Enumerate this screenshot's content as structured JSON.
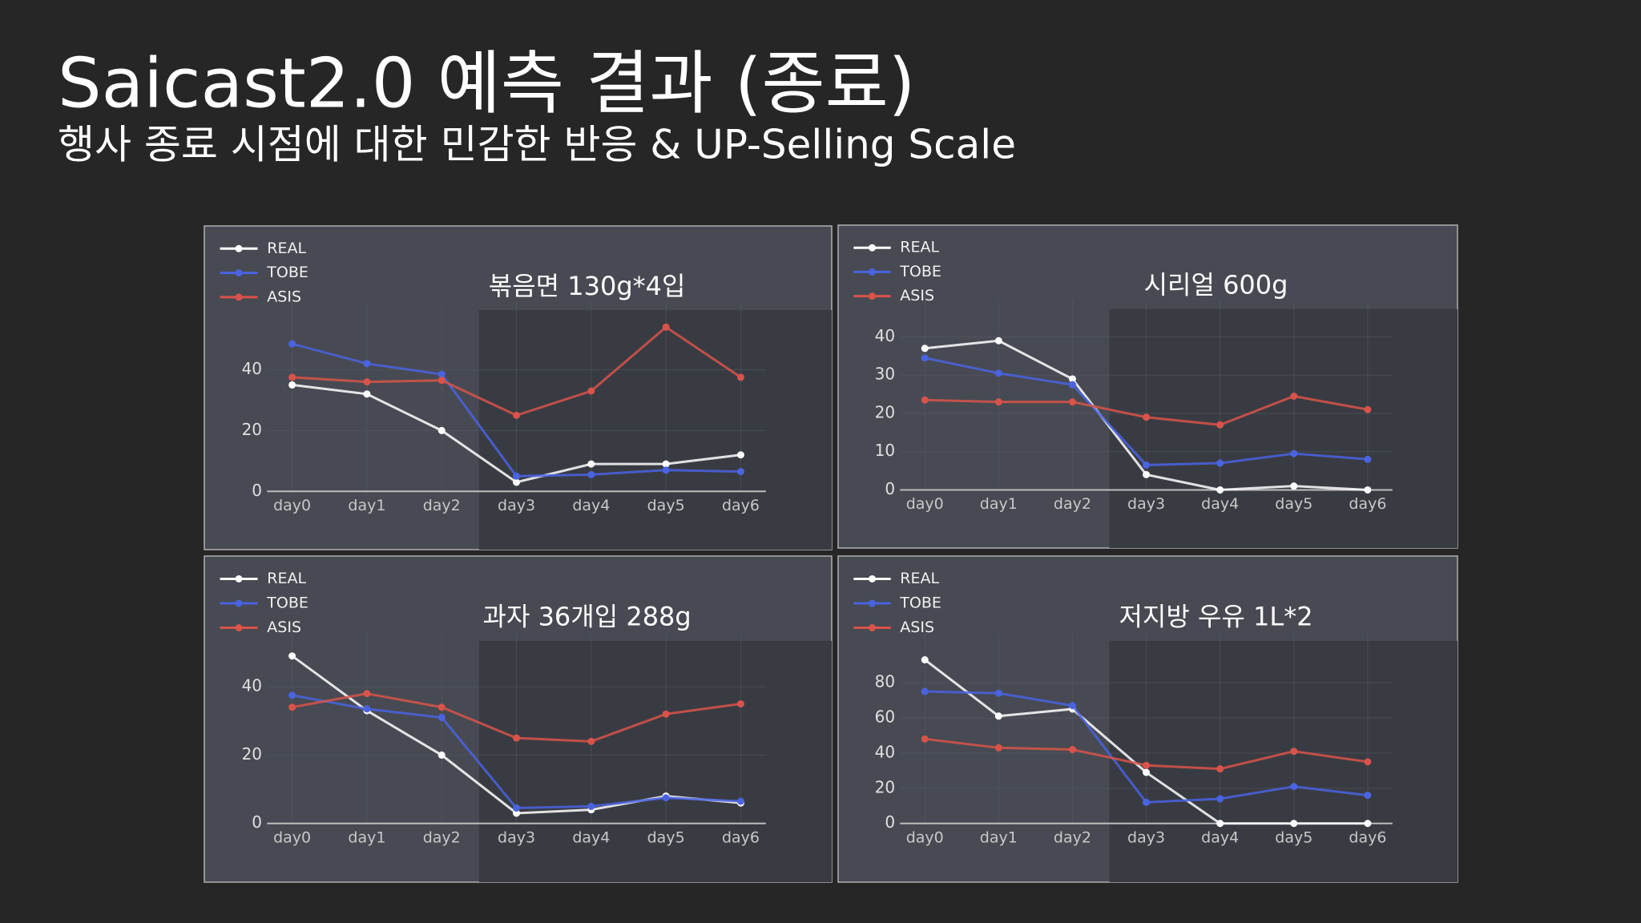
{
  "header": {
    "title": "Saicast2.0 예측 결과 (종료)",
    "subtitle": "행사 종료 시점에 대한 민감한 반응 & UP-Selling Scale"
  },
  "chart_data": [
    {
      "type": "line",
      "title": "볶음면 130g*4입",
      "categories": [
        "day0",
        "day1",
        "day2",
        "day3",
        "day4",
        "day5",
        "day6"
      ],
      "series": [
        {
          "name": "REAL",
          "color": "#ffffff",
          "values": [
            35,
            32,
            20,
            3,
            9,
            9,
            12
          ]
        },
        {
          "name": "TOBE",
          "color": "#4a63e0",
          "values": [
            48.5,
            42,
            38.5,
            5,
            5.5,
            7,
            6.5
          ]
        },
        {
          "name": "ASIS",
          "color": "#d9534a",
          "values": [
            37.5,
            36,
            36.5,
            25,
            33,
            54,
            37.5
          ]
        }
      ],
      "ylim": [
        0,
        58
      ],
      "yticks": [
        0,
        20,
        40
      ],
      "grid": true
    },
    {
      "type": "line",
      "title": "시리얼 600g",
      "categories": [
        "day0",
        "day1",
        "day2",
        "day3",
        "day4",
        "day5",
        "day6"
      ],
      "series": [
        {
          "name": "REAL",
          "color": "#ffffff",
          "values": [
            37,
            39,
            29,
            4,
            0,
            1,
            0
          ]
        },
        {
          "name": "TOBE",
          "color": "#4a63e0",
          "values": [
            34.5,
            30.5,
            27.5,
            6.5,
            7,
            9.5,
            8
          ]
        },
        {
          "name": "ASIS",
          "color": "#d9534a",
          "values": [
            23.5,
            23,
            23,
            19,
            17,
            24.5,
            21
          ]
        }
      ],
      "ylim": [
        0,
        46
      ],
      "yticks": [
        0,
        10,
        20,
        30,
        40
      ],
      "grid": true
    },
    {
      "type": "line",
      "title": "과자 36개입 288g",
      "categories": [
        "day0",
        "day1",
        "day2",
        "day3",
        "day4",
        "day5",
        "day6"
      ],
      "series": [
        {
          "name": "REAL",
          "color": "#ffffff",
          "values": [
            49,
            33,
            20,
            3,
            4,
            8,
            6
          ]
        },
        {
          "name": "TOBE",
          "color": "#4a63e0",
          "values": [
            37.5,
            33.5,
            31,
            4.5,
            5,
            7.5,
            6.5
          ]
        },
        {
          "name": "ASIS",
          "color": "#d9534a",
          "values": [
            34,
            38,
            34,
            25,
            24,
            32,
            35
          ]
        }
      ],
      "ylim": [
        0,
        52
      ],
      "yticks": [
        0,
        20,
        40
      ],
      "grid": true
    },
    {
      "type": "line",
      "title": "저지방 우유 1L*2",
      "categories": [
        "day0",
        "day1",
        "day2",
        "day3",
        "day4",
        "day5",
        "day6"
      ],
      "series": [
        {
          "name": "REAL",
          "color": "#ffffff",
          "values": [
            93,
            61,
            65,
            29,
            0,
            0,
            0
          ]
        },
        {
          "name": "TOBE",
          "color": "#4a63e0",
          "values": [
            75,
            74,
            67,
            12,
            14,
            21,
            16
          ]
        },
        {
          "name": "ASIS",
          "color": "#d9534a",
          "values": [
            48,
            43,
            42,
            33,
            31,
            41,
            35
          ]
        }
      ],
      "ylim": [
        0,
        101
      ],
      "yticks": [
        0,
        20,
        40,
        60,
        80
      ],
      "grid": true
    }
  ]
}
